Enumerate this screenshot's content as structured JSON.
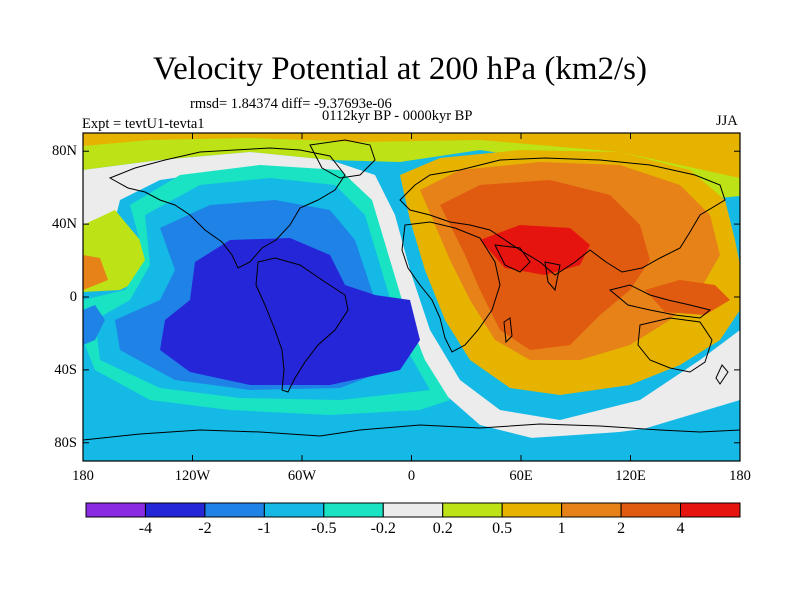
{
  "title": "Velocity Potential at 200 hPa (km2/s)",
  "stats": "rmsd= 1.84374 diff= -9.37693e-06",
  "period": "0112kyr BP - 0000kyr BP",
  "experiment": "Expt = tevtU1-tevta1",
  "season": "JJA",
  "map": {
    "lon_labels": [
      "180",
      "120W",
      "60W",
      "0",
      "60E",
      "120E",
      "180"
    ],
    "lat_labels": [
      "80N",
      "40N",
      "0",
      "40S",
      "80S"
    ],
    "lat_values": [
      80,
      40,
      0,
      -40,
      -80
    ],
    "lon_range": [
      -180,
      180
    ],
    "lat_range": [
      -90,
      90
    ]
  },
  "colorbar": {
    "colors": [
      "#8a2be2",
      "#2626d9",
      "#1e82e6",
      "#14b9e6",
      "#19e3c3",
      "#ececec",
      "#bde215",
      "#e6b400",
      "#e68217",
      "#e05a0f",
      "#e6140f"
    ],
    "labels": [
      "-4",
      "-2",
      "-1",
      "-0.5",
      "-0.2",
      "0.2",
      "0.5",
      "1",
      "2",
      "4"
    ]
  }
}
